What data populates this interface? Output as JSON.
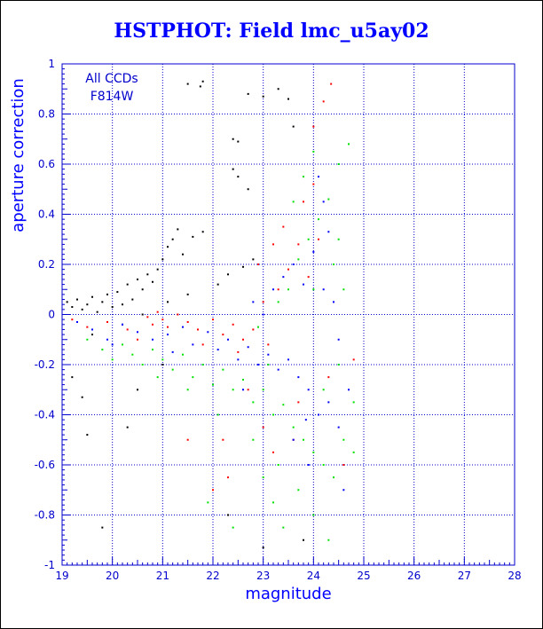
{
  "chart_data": {
    "type": "scatter",
    "title": "HSTPHOT: Field lmc_u5ay02",
    "xlabel": "magnitude",
    "ylabel": "aperture correction",
    "xlim": [
      19,
      28
    ],
    "ylim": [
      -1,
      1
    ],
    "xticks": [
      "19",
      "20",
      "21",
      "22",
      "23",
      "24",
      "25",
      "26",
      "27",
      "28"
    ],
    "yticks": [
      "-1",
      "-0.8",
      "-0.6",
      "-0.4",
      "-0.2",
      "0",
      "0.2",
      "0.4",
      "0.6",
      "0.8",
      "1"
    ],
    "grid": true,
    "annotations": [
      "All CCDs",
      "F814W"
    ],
    "colors": {
      "axis": "#0000cc",
      "grid": "#0000cc",
      "title": "#0000ff",
      "black": "#000000",
      "red": "#ff0000",
      "blue": "#0000ff",
      "green": "#00e000"
    },
    "series": [
      {
        "color": "black",
        "points": [
          [
            19.1,
            0.05
          ],
          [
            19.2,
            0.03
          ],
          [
            19.3,
            0.06
          ],
          [
            19.4,
            0.02
          ],
          [
            19.5,
            0.04
          ],
          [
            19.6,
            0.07
          ],
          [
            19.7,
            0.01
          ],
          [
            19.8,
            0.05
          ],
          [
            19.9,
            0.08
          ],
          [
            20.0,
            0.03
          ],
          [
            20.1,
            0.09
          ],
          [
            20.2,
            0.04
          ],
          [
            20.3,
            0.12
          ],
          [
            20.4,
            0.06
          ],
          [
            20.5,
            0.14
          ],
          [
            20.6,
            0.1
          ],
          [
            20.7,
            0.16
          ],
          [
            20.8,
            0.13
          ],
          [
            20.9,
            0.18
          ],
          [
            21.0,
            0.22
          ],
          [
            21.1,
            0.27
          ],
          [
            21.2,
            0.3
          ],
          [
            21.3,
            0.34
          ],
          [
            21.4,
            0.24
          ],
          [
            21.6,
            0.31
          ],
          [
            21.8,
            0.33
          ],
          [
            21.5,
            0.92
          ],
          [
            21.75,
            0.91
          ],
          [
            21.8,
            0.93
          ],
          [
            22.4,
            0.58
          ],
          [
            22.5,
            0.55
          ],
          [
            22.7,
            0.5
          ],
          [
            22.4,
            0.7
          ],
          [
            22.5,
            0.69
          ],
          [
            22.7,
            0.88
          ],
          [
            23.0,
            0.87
          ],
          [
            23.3,
            0.9
          ],
          [
            23.5,
            0.86
          ],
          [
            23.6,
            0.75
          ],
          [
            19.2,
            -0.25
          ],
          [
            19.4,
            -0.33
          ],
          [
            19.5,
            -0.48
          ],
          [
            19.8,
            -0.85
          ],
          [
            20.3,
            -0.45
          ],
          [
            20.5,
            -0.3
          ],
          [
            21.0,
            -0.2
          ],
          [
            22.3,
            -0.8
          ],
          [
            23.0,
            -0.93
          ],
          [
            23.8,
            -0.9
          ],
          [
            22.1,
            0.12
          ],
          [
            22.3,
            0.16
          ],
          [
            22.6,
            0.19
          ],
          [
            22.8,
            0.22
          ],
          [
            21.1,
            0.05
          ],
          [
            21.5,
            0.08
          ],
          [
            20.6,
            0.0
          ],
          [
            20.2,
            -0.04
          ],
          [
            19.6,
            -0.08
          ]
        ]
      },
      {
        "color": "red",
        "points": [
          [
            19.2,
            -0.02
          ],
          [
            19.5,
            -0.05
          ],
          [
            19.9,
            -0.03
          ],
          [
            20.3,
            -0.06
          ],
          [
            20.7,
            -0.01
          ],
          [
            20.8,
            -0.04
          ],
          [
            20.9,
            0.01
          ],
          [
            21.0,
            -0.02
          ],
          [
            21.1,
            -0.05
          ],
          [
            21.3,
            0.0
          ],
          [
            21.5,
            -0.03
          ],
          [
            21.7,
            -0.06
          ],
          [
            22.0,
            -0.02
          ],
          [
            22.2,
            -0.08
          ],
          [
            22.4,
            -0.04
          ],
          [
            22.6,
            -0.1
          ],
          [
            22.8,
            -0.06
          ],
          [
            23.0,
            0.05
          ],
          [
            23.1,
            -0.12
          ],
          [
            23.3,
            0.1
          ],
          [
            23.5,
            0.18
          ],
          [
            23.7,
            0.28
          ],
          [
            23.8,
            0.45
          ],
          [
            24.0,
            0.52
          ],
          [
            24.2,
            0.85
          ],
          [
            24.35,
            0.92
          ],
          [
            24.1,
            0.3
          ],
          [
            23.9,
            0.15
          ],
          [
            22.5,
            -0.15
          ],
          [
            22.7,
            -0.3
          ],
          [
            23.0,
            -0.45
          ],
          [
            23.2,
            -0.55
          ],
          [
            22.2,
            -0.5
          ],
          [
            22.0,
            -0.7
          ],
          [
            23.6,
            -0.5
          ],
          [
            24.3,
            -0.25
          ],
          [
            24.6,
            -0.6
          ],
          [
            24.0,
            0.75
          ],
          [
            23.4,
            0.35
          ],
          [
            22.9,
            0.2
          ],
          [
            23.2,
            0.28
          ],
          [
            21.8,
            -0.12
          ],
          [
            20.5,
            -0.1
          ],
          [
            24.8,
            -0.18
          ],
          [
            23.7,
            -0.35
          ],
          [
            22.3,
            -0.65
          ],
          [
            21.5,
            -0.5
          ]
        ]
      },
      {
        "color": "blue",
        "points": [
          [
            19.3,
            -0.03
          ],
          [
            19.6,
            -0.06
          ],
          [
            19.9,
            -0.1
          ],
          [
            20.2,
            -0.04
          ],
          [
            20.5,
            -0.07
          ],
          [
            20.8,
            -0.1
          ],
          [
            21.1,
            -0.08
          ],
          [
            21.4,
            -0.05
          ],
          [
            21.6,
            -0.12
          ],
          [
            21.9,
            -0.07
          ],
          [
            22.1,
            -0.14
          ],
          [
            22.3,
            -0.1
          ],
          [
            22.5,
            -0.18
          ],
          [
            22.7,
            -0.13
          ],
          [
            22.9,
            -0.2
          ],
          [
            23.1,
            -0.16
          ],
          [
            23.3,
            -0.22
          ],
          [
            23.5,
            -0.18
          ],
          [
            23.7,
            -0.25
          ],
          [
            23.9,
            -0.3
          ],
          [
            24.1,
            -0.4
          ],
          [
            24.3,
            -0.35
          ],
          [
            24.5,
            -0.45
          ],
          [
            23.2,
            0.1
          ],
          [
            23.4,
            0.15
          ],
          [
            23.6,
            0.2
          ],
          [
            23.8,
            0.12
          ],
          [
            24.0,
            0.25
          ],
          [
            24.2,
            0.1
          ],
          [
            22.8,
            0.05
          ],
          [
            23.0,
            0.0
          ],
          [
            24.1,
            0.55
          ],
          [
            24.2,
            0.45
          ],
          [
            23.6,
            -0.5
          ],
          [
            23.9,
            -0.6
          ],
          [
            24.6,
            -0.7
          ],
          [
            24.4,
            0.05
          ],
          [
            22.6,
            -0.3
          ],
          [
            21.2,
            -0.15
          ],
          [
            20.0,
            -0.12
          ],
          [
            24.7,
            -0.3
          ],
          [
            24.5,
            -0.1
          ],
          [
            23.85,
            -0.42
          ],
          [
            24.3,
            0.33
          ]
        ]
      },
      {
        "color": "green",
        "points": [
          [
            19.5,
            -0.1
          ],
          [
            19.8,
            -0.14
          ],
          [
            20.0,
            -0.18
          ],
          [
            20.2,
            -0.12
          ],
          [
            20.4,
            -0.16
          ],
          [
            20.6,
            -0.2
          ],
          [
            20.8,
            -0.14
          ],
          [
            21.0,
            -0.18
          ],
          [
            21.2,
            -0.22
          ],
          [
            21.4,
            -0.16
          ],
          [
            21.6,
            -0.25
          ],
          [
            21.8,
            -0.2
          ],
          [
            22.0,
            -0.28
          ],
          [
            22.2,
            -0.22
          ],
          [
            22.4,
            -0.3
          ],
          [
            22.6,
            -0.26
          ],
          [
            22.8,
            -0.35
          ],
          [
            23.0,
            -0.3
          ],
          [
            23.2,
            -0.4
          ],
          [
            23.4,
            -0.36
          ],
          [
            23.6,
            -0.45
          ],
          [
            23.8,
            -0.5
          ],
          [
            24.0,
            -0.55
          ],
          [
            24.2,
            -0.6
          ],
          [
            24.4,
            -0.65
          ],
          [
            24.6,
            -0.5
          ],
          [
            24.8,
            -0.35
          ],
          [
            22.8,
            -0.5
          ],
          [
            23.0,
            -0.65
          ],
          [
            23.2,
            -0.75
          ],
          [
            23.4,
            -0.85
          ],
          [
            24.0,
            -0.8
          ],
          [
            24.3,
            -0.9
          ],
          [
            22.4,
            -0.85
          ],
          [
            21.9,
            -0.75
          ],
          [
            23.5,
            0.1
          ],
          [
            23.7,
            0.22
          ],
          [
            23.9,
            0.3
          ],
          [
            24.1,
            0.38
          ],
          [
            24.3,
            0.46
          ],
          [
            24.5,
            0.6
          ],
          [
            24.7,
            0.68
          ],
          [
            24.0,
            0.65
          ],
          [
            23.8,
            0.55
          ],
          [
            23.6,
            0.45
          ],
          [
            24.4,
            0.2
          ],
          [
            24.6,
            0.1
          ],
          [
            23.3,
            0.05
          ],
          [
            22.9,
            -0.05
          ],
          [
            24.2,
            -0.3
          ],
          [
            24.5,
            -0.2
          ],
          [
            24.8,
            -0.55
          ],
          [
            23.1,
            -0.2
          ],
          [
            22.1,
            -0.4
          ],
          [
            21.5,
            -0.3
          ],
          [
            20.9,
            -0.25
          ],
          [
            23.3,
            -0.6
          ],
          [
            24.5,
            0.3
          ],
          [
            24.0,
            0.1
          ],
          [
            23.7,
            -0.7
          ]
        ]
      }
    ]
  }
}
